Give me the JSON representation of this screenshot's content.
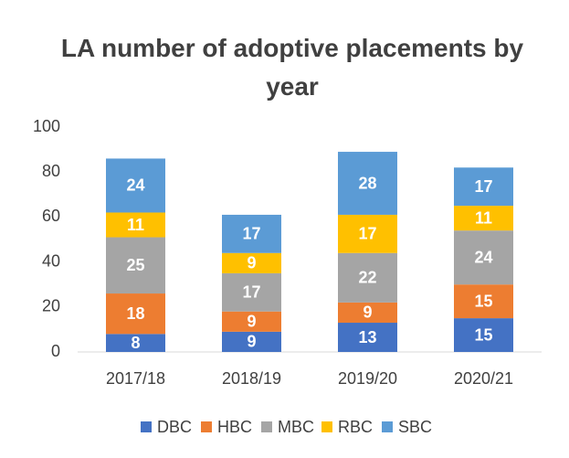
{
  "chart_data": {
    "type": "stacked_bar",
    "title": "LA number of adoptive placements by year",
    "categories": [
      "2017/18",
      "2018/19",
      "2019/20",
      "2020/21"
    ],
    "series": [
      {
        "name": "DBC",
        "color": "#4472c4",
        "values": [
          8,
          9,
          13,
          15
        ]
      },
      {
        "name": "HBC",
        "color": "#ed7d31",
        "values": [
          18,
          9,
          9,
          15
        ]
      },
      {
        "name": "MBC",
        "color": "#a5a5a5",
        "values": [
          25,
          17,
          22,
          24
        ]
      },
      {
        "name": "RBC",
        "color": "#ffc000",
        "values": [
          11,
          9,
          17,
          11
        ]
      },
      {
        "name": "SBC",
        "color": "#5b9bd5",
        "values": [
          24,
          17,
          28,
          17
        ]
      }
    ],
    "ylim": [
      0,
      100
    ],
    "yticks": [
      0,
      20,
      40,
      60,
      80,
      100
    ],
    "grid": false,
    "legend": "bottom"
  }
}
